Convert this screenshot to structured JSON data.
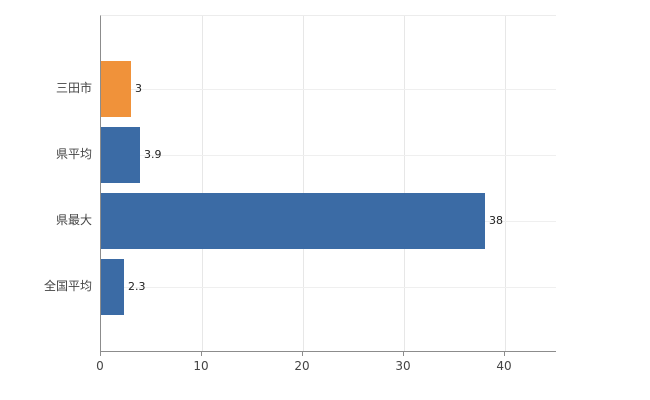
{
  "chart_data": {
    "type": "bar",
    "orientation": "horizontal",
    "title": "",
    "xlabel": "",
    "ylabel": "",
    "categories": [
      "三田市",
      "県平均",
      "県最大",
      "全国平均"
    ],
    "values": [
      3,
      3.9,
      38,
      2.3
    ],
    "value_labels": [
      "3",
      "3.9",
      "38",
      "2.3"
    ],
    "bar_colors": [
      "#f0923a",
      "#3b6ba5",
      "#3b6ba5",
      "#3b6ba5"
    ],
    "accent_orange": "#f0923a",
    "accent_blue": "#3b6ba5",
    "xlim": [
      0,
      45
    ],
    "x_ticks": [
      0,
      10,
      20,
      30,
      40
    ],
    "x_tick_labels": [
      "0",
      "10",
      "20",
      "30",
      "40"
    ],
    "grid": true,
    "legend": false,
    "background_color": "#ffffff"
  }
}
